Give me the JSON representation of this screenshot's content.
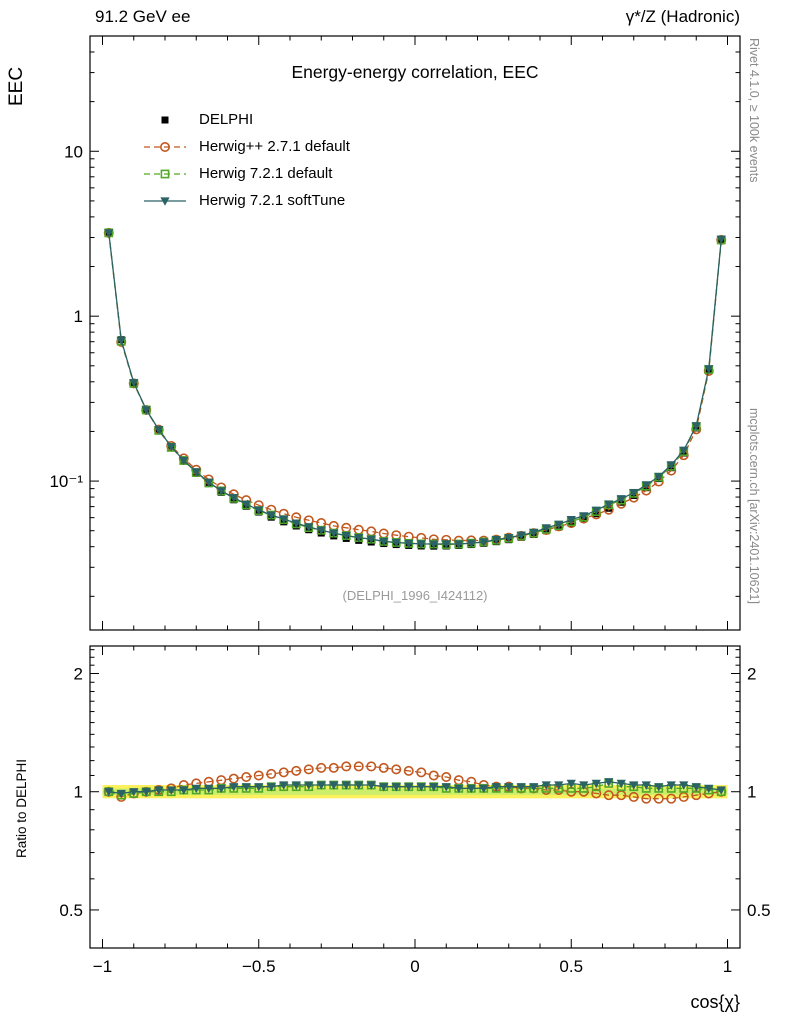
{
  "page": {
    "header_left": "91.2 GeV ee",
    "header_right": "γ*/Z (Hadronic)",
    "right_note_top": "Rivet 4.1.0, ≥ 100k events",
    "right_note_bottom": "mcplots.cern.ch [arXiv:2401.10621]",
    "watermark": "(DELPHI_1996_I424112)"
  },
  "chart_data": {
    "type": "line",
    "title": "Energy-energy correlation, EEC",
    "xlabel": "cos{χ}",
    "ylabel": "EEC",
    "ylabel_ratio": "Ratio to DELPHI",
    "x_bin_width": 0.04,
    "x": [
      -0.98,
      -0.94,
      -0.9,
      -0.86,
      -0.82,
      -0.78,
      -0.74,
      -0.7,
      -0.66,
      -0.62,
      -0.58,
      -0.54,
      -0.5,
      -0.46,
      -0.42,
      -0.38,
      -0.34,
      -0.3,
      -0.26,
      -0.22,
      -0.18,
      -0.14,
      -0.1,
      -0.06,
      -0.02,
      0.02,
      0.06,
      0.1,
      0.14,
      0.18,
      0.22,
      0.26,
      0.3,
      0.34,
      0.38,
      0.42,
      0.46,
      0.5,
      0.54,
      0.58,
      0.62,
      0.66,
      0.7,
      0.74,
      0.78,
      0.82,
      0.86,
      0.9,
      0.94,
      0.98
    ],
    "series": [
      {
        "name": "DELPHI",
        "role": "data",
        "marker": "filled-square",
        "color": "#000000",
        "line": "none",
        "values": [
          3.2,
          0.72,
          0.395,
          0.27,
          0.203,
          0.16,
          0.132,
          0.1115,
          0.0965,
          0.0855,
          0.077,
          0.0703,
          0.0649,
          0.0604,
          0.0566,
          0.0534,
          0.0507,
          0.0484,
          0.0465,
          0.0449,
          0.0437,
          0.0427,
          0.0418,
          0.0412,
          0.0407,
          0.0404,
          0.0403,
          0.0404,
          0.0407,
          0.0412,
          0.0419,
          0.0429,
          0.0441,
          0.0456,
          0.0474,
          0.05,
          0.0526,
          0.0556,
          0.0592,
          0.0634,
          0.0684,
          0.0744,
          0.0818,
          0.0912,
          0.1035,
          0.1205,
          0.148,
          0.21,
          0.47,
          2.9
        ]
      },
      {
        "name": "Herwig++ 2.7.1 default",
        "role": "mc",
        "marker": "open-circle",
        "color": "#c2571f",
        "line": "dashed",
        "ratio_to_data": [
          1.0,
          0.97,
          0.99,
          1.0,
          1.01,
          1.02,
          1.04,
          1.05,
          1.06,
          1.07,
          1.08,
          1.09,
          1.1,
          1.11,
          1.12,
          1.13,
          1.14,
          1.15,
          1.15,
          1.16,
          1.16,
          1.16,
          1.15,
          1.14,
          1.13,
          1.12,
          1.1,
          1.09,
          1.07,
          1.06,
          1.04,
          1.03,
          1.03,
          1.02,
          1.02,
          1.01,
          1.01,
          1.0,
          1.0,
          0.99,
          0.98,
          0.98,
          0.97,
          0.96,
          0.96,
          0.96,
          0.97,
          0.98,
          0.99,
          1.0
        ]
      },
      {
        "name": "Herwig 7.2.1 default",
        "role": "mc",
        "marker": "open-square",
        "color": "#53a726",
        "line": "dashed",
        "ratio_to_data": [
          1.0,
          0.98,
          0.99,
          1.0,
          1.0,
          1.0,
          1.01,
          1.01,
          1.01,
          1.02,
          1.02,
          1.02,
          1.02,
          1.03,
          1.03,
          1.03,
          1.03,
          1.04,
          1.04,
          1.04,
          1.04,
          1.04,
          1.03,
          1.03,
          1.03,
          1.03,
          1.03,
          1.02,
          1.02,
          1.02,
          1.02,
          1.02,
          1.02,
          1.02,
          1.02,
          1.02,
          1.02,
          1.02,
          1.02,
          1.03,
          1.05,
          1.03,
          1.03,
          1.02,
          1.02,
          1.02,
          1.02,
          1.02,
          1.01,
          1.0
        ]
      },
      {
        "name": "Herwig 7.2.1 softTune",
        "role": "mc",
        "marker": "filled-triangle-down",
        "color": "#2a6266",
        "line": "solid",
        "ratio_to_data": [
          1.0,
          0.99,
          1.0,
          1.0,
          1.01,
          1.01,
          1.01,
          1.02,
          1.02,
          1.02,
          1.03,
          1.03,
          1.03,
          1.03,
          1.04,
          1.04,
          1.04,
          1.04,
          1.04,
          1.04,
          1.04,
          1.04,
          1.03,
          1.03,
          1.03,
          1.03,
          1.03,
          1.03,
          1.02,
          1.02,
          1.02,
          1.03,
          1.03,
          1.03,
          1.03,
          1.04,
          1.04,
          1.05,
          1.04,
          1.05,
          1.06,
          1.05,
          1.04,
          1.04,
          1.03,
          1.04,
          1.04,
          1.03,
          1.02,
          1.01
        ]
      }
    ],
    "band": {
      "outer": [
        0.962,
        1.04
      ],
      "inner": [
        0.982,
        1.019
      ],
      "outer_color": "#fdf05d",
      "inner_color": "#cdee6b",
      "x_range": [
        -1.0,
        1.0
      ]
    },
    "axes": {
      "x": {
        "scale": "linear",
        "min": -1.04,
        "max": 1.04,
        "major": [
          -1,
          -0.5,
          0,
          0.5,
          1
        ],
        "major_labels": [
          "−1",
          "−0.5",
          "0",
          "0.5",
          "1"
        ],
        "minor_kind": "tenths"
      },
      "y_main": {
        "scale": "log",
        "min": 0.0125,
        "max": 50,
        "major": [
          0.1,
          1,
          10
        ],
        "major_labels": [
          "10⁻¹",
          "1",
          "10"
        ],
        "minor_kind": "log"
      },
      "y_ratio": {
        "scale": "log",
        "min": 0.4,
        "max": 2.35,
        "major": [
          0.5,
          1,
          2
        ],
        "major_labels": [
          "0.5",
          "1",
          "2"
        ],
        "minor_kind": "tenths"
      }
    }
  }
}
